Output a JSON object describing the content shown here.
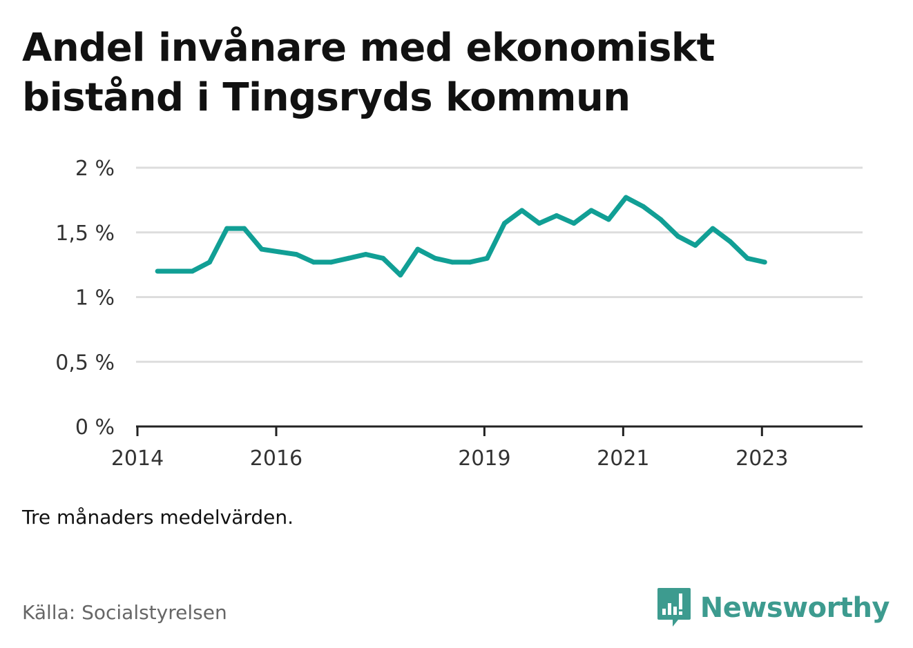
{
  "title": "Andel invånare med ekonomiskt bistånd i Tingsryds kommun",
  "note": "Tre månaders medelvärden.",
  "source": "Källa: Socialstyrelsen",
  "brand": {
    "name": "Newsworthy",
    "icon": "newsworthy-logo-icon",
    "color": "#3d9b8f"
  },
  "chart_data": {
    "type": "line",
    "title": "Andel invånare med ekonomiskt bistånd i Tingsryds kommun",
    "xlabel": "",
    "ylabel": "",
    "xlim": [
      2013.98,
      2024.45
    ],
    "ylim": [
      0,
      2
    ],
    "ytick_values": [
      0,
      0.5,
      1,
      1.5,
      2
    ],
    "ytick_labels": [
      "0 %",
      "0,5 %",
      "1 %",
      "1,5 %",
      "2 %"
    ],
    "xtick_values": [
      2014,
      2016,
      2019,
      2021,
      2023
    ],
    "xtick_labels": [
      "2014",
      "2016",
      "2019",
      "2021",
      "2023"
    ],
    "grid": true,
    "legend": "none",
    "color": "#119f95",
    "series": [
      {
        "x": [
          2014.29,
          2014.54,
          2014.79,
          2015.04,
          2015.29,
          2015.54,
          2015.79,
          2016.04,
          2016.29,
          2016.54,
          2016.79,
          2017.04,
          2017.29,
          2017.54,
          2017.79,
          2018.04,
          2018.29,
          2018.54,
          2018.79,
          2019.04,
          2019.29,
          2019.54,
          2019.79,
          2020.04,
          2020.29,
          2020.54,
          2020.79,
          2021.04,
          2021.29,
          2021.54,
          2021.79,
          2022.04,
          2022.29,
          2022.54,
          2022.79,
          2023.04
        ],
        "values": [
          1.2,
          1.2,
          1.2,
          1.27,
          1.53,
          1.53,
          1.37,
          1.35,
          1.33,
          1.27,
          1.27,
          1.3,
          1.33,
          1.3,
          1.17,
          1.37,
          1.3,
          1.27,
          1.27,
          1.3,
          1.57,
          1.67,
          1.57,
          1.63,
          1.57,
          1.67,
          1.6,
          1.77,
          1.7,
          1.6,
          1.47,
          1.4,
          1.53,
          1.43,
          1.3,
          1.27
        ]
      }
    ]
  }
}
